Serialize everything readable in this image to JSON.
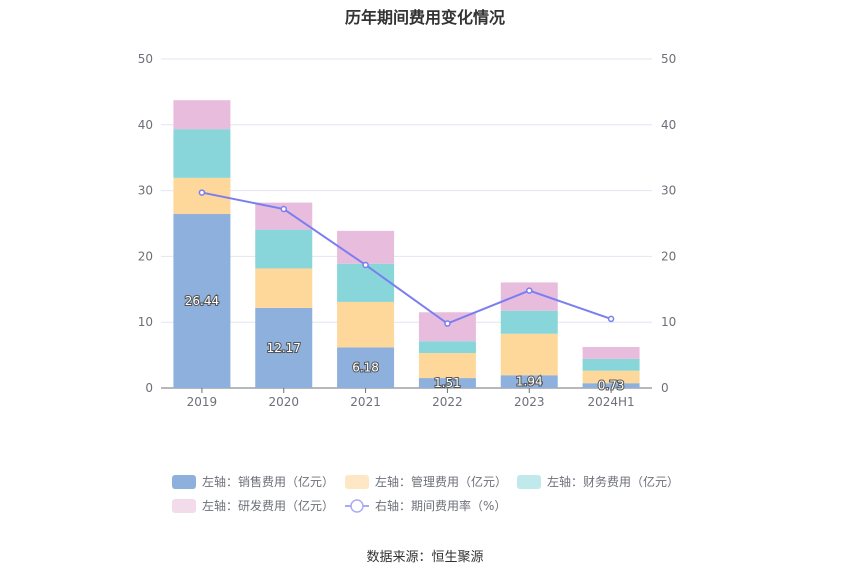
{
  "title": "历年期间费用变化情况",
  "source": "数据来源：恒生聚源",
  "chart_data": {
    "type": "bar",
    "stacked": true,
    "categories": [
      "2019",
      "2020",
      "2021",
      "2022",
      "2023",
      "2024H1"
    ],
    "left_axis": {
      "ylim": [
        0,
        50
      ],
      "ticks": [
        0,
        10,
        20,
        30,
        40,
        50
      ]
    },
    "right_axis": {
      "ylim": [
        0,
        50
      ],
      "ticks": [
        0,
        10,
        20,
        30,
        40,
        50
      ]
    },
    "series": [
      {
        "name": "左轴：销售费用（亿元）",
        "axis": "left",
        "type": "bar",
        "values": [
          26.44,
          12.17,
          6.18,
          1.51,
          1.94,
          0.73
        ],
        "labels": [
          "26.44",
          "12.17",
          "6.18",
          "1.51",
          "1.94",
          "0.73"
        ],
        "color": "#8eb0dc",
        "legend_color": "#8eb0dc"
      },
      {
        "name": "左轴：管理费用（亿元）",
        "axis": "left",
        "type": "bar",
        "values": [
          5.5,
          6.0,
          6.9,
          3.8,
          6.3,
          1.9
        ],
        "color": "#fdd89a",
        "legend_color": "#fde7c4"
      },
      {
        "name": "左轴：财务费用（亿元）",
        "axis": "left",
        "type": "bar",
        "values": [
          7.4,
          5.9,
          5.8,
          1.8,
          3.5,
          1.8
        ],
        "color": "#88d6d9",
        "legend_color": "#bfe9ea"
      },
      {
        "name": "左轴：研发费用（亿元）",
        "axis": "left",
        "type": "bar",
        "values": [
          4.4,
          4.1,
          5.0,
          4.4,
          4.3,
          1.8
        ],
        "color": "#e8bcdc",
        "legend_color": "#f2dcec"
      },
      {
        "name": "右轴：期间费用率（%）",
        "axis": "right",
        "type": "line",
        "values": [
          29.7,
          27.2,
          18.7,
          9.8,
          14.8,
          10.5
        ],
        "color": "#7b7ef0"
      }
    ],
    "grid": true,
    "legend_position": "bottom"
  }
}
